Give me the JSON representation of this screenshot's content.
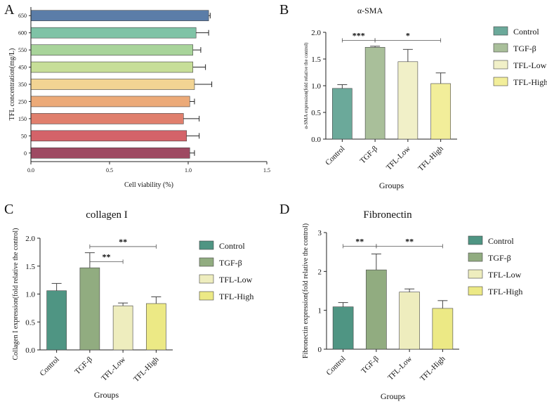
{
  "chart_data": [
    {
      "panel": "A",
      "type": "bar",
      "orientation": "horizontal",
      "title": "",
      "xlabel": "Cell viability (%)",
      "ylabel": "TFL concentration(mg/L)",
      "xlim": [
        0,
        1.5
      ],
      "xticks": [
        "0.0",
        "0.5",
        "1.0",
        "1.5"
      ],
      "categories": [
        "650",
        "600",
        "550",
        "450",
        "350",
        "250",
        "150",
        "50",
        "0"
      ],
      "values": [
        1.13,
        1.05,
        1.03,
        1.03,
        1.04,
        1.01,
        0.97,
        0.99,
        1.01
      ],
      "errors": [
        0.01,
        0.08,
        0.05,
        0.08,
        0.11,
        0.03,
        0.1,
        0.08,
        0.03
      ],
      "colors": [
        "#5B7DA8",
        "#7FC3A6",
        "#A8D49A",
        "#C7DE98",
        "#F2D493",
        "#ECAA78",
        "#E07F6D",
        "#D46369",
        "#9E4A62"
      ]
    },
    {
      "panel": "B",
      "type": "bar",
      "title": "α-SMA",
      "xlabel": "Groups",
      "ylabel": "α-SMA expression(fold relative the control)",
      "ylim": [
        0,
        2.0
      ],
      "yticks": [
        "0.0",
        "0.5",
        "1.0",
        "1.5",
        "2.0"
      ],
      "categories": [
        "Control",
        "TGF-β",
        "TFL-Low",
        "TFL-High"
      ],
      "values": [
        0.95,
        1.72,
        1.45,
        1.04
      ],
      "errors": [
        0.07,
        0.02,
        0.23,
        0.2
      ],
      "colors": [
        "#6BA99A",
        "#A9BF9A",
        "#F1F0C8",
        "#F2EE9A"
      ],
      "legend": [
        "Control",
        "TGF-β",
        "TFL-Low",
        "TFL-High"
      ],
      "significance": [
        {
          "from": 0,
          "to": 1,
          "label": "***",
          "y": 1.85
        },
        {
          "from": 1,
          "to": 3,
          "label": "*",
          "y": 1.85
        }
      ]
    },
    {
      "panel": "C",
      "type": "bar",
      "title": "collagen I",
      "xlabel": "Groups",
      "ylabel": "Collagen I expression(fold relative the control)",
      "ylim": [
        0,
        2.0
      ],
      "yticks": [
        "0.0",
        "0.5",
        "1.0",
        "1.5",
        "2.0"
      ],
      "categories": [
        "Control",
        "TGF-β",
        "TFL-Low",
        "TFL-High"
      ],
      "values": [
        1.06,
        1.47,
        0.79,
        0.83
      ],
      "errors": [
        0.13,
        0.27,
        0.05,
        0.12
      ],
      "colors": [
        "#4F9583",
        "#91AC80",
        "#EEEDBE",
        "#ECE985"
      ],
      "legend": [
        "Control",
        "TGF-β",
        "TFL-Low",
        "TFL-High"
      ],
      "significance": [
        {
          "from": 1,
          "to": 2,
          "label": "**",
          "y": 1.58
        },
        {
          "from": 1,
          "to": 3,
          "label": "**",
          "y": 1.85
        }
      ]
    },
    {
      "panel": "D",
      "type": "bar",
      "title": "Fibronectin",
      "xlabel": "Groups",
      "ylabel": "Fibronectin expression(fold relative the control)",
      "ylim": [
        0,
        3
      ],
      "yticks": [
        "0",
        "1",
        "2",
        "3"
      ],
      "categories": [
        "Control",
        "TGF-β",
        "TFL-Low",
        "TFL-High"
      ],
      "values": [
        1.09,
        2.04,
        1.47,
        1.05
      ],
      "errors": [
        0.11,
        0.41,
        0.08,
        0.2
      ],
      "colors": [
        "#4F9583",
        "#91AC80",
        "#EEEDBE",
        "#ECE985"
      ],
      "legend": [
        "Control",
        "TGF-β",
        "TFL-Low",
        "TFL-High"
      ],
      "significance": [
        {
          "from": 0,
          "to": 1,
          "label": "**",
          "y": 2.65
        },
        {
          "from": 1,
          "to": 3,
          "label": "**",
          "y": 2.65
        }
      ]
    }
  ]
}
